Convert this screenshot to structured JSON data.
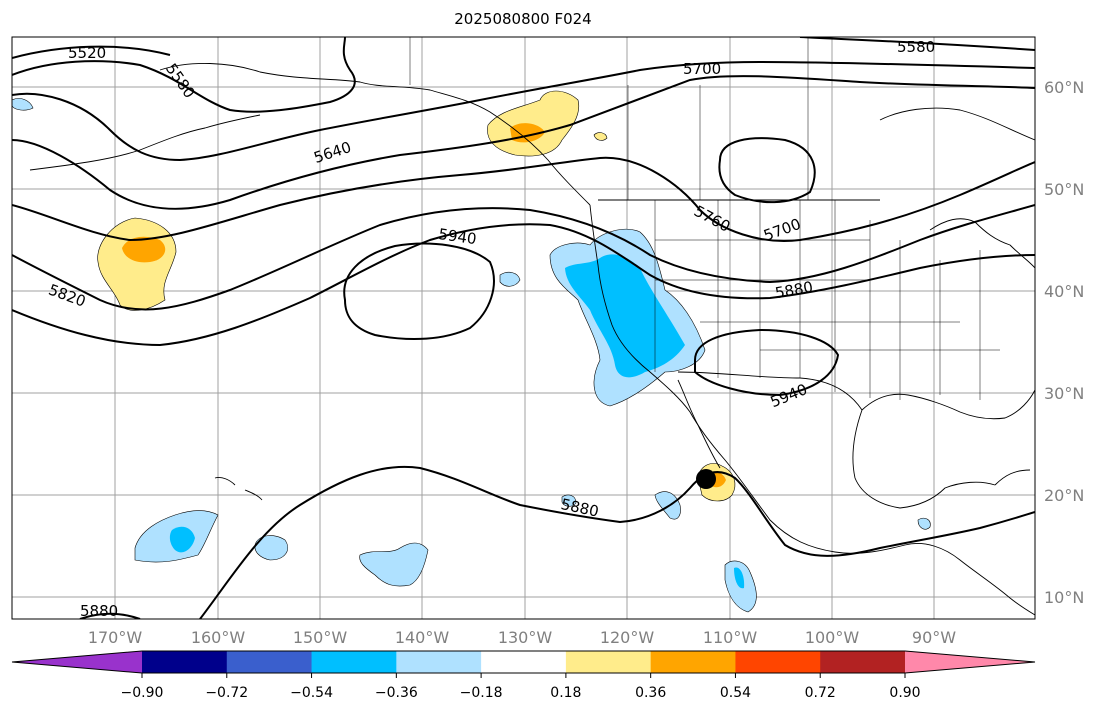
{
  "title": "2025080800 F024",
  "map": {
    "longitude_labels": [
      "170°W",
      "160°W",
      "150°W",
      "140°W",
      "130°W",
      "120°W",
      "110°W",
      "100°W",
      "90°W"
    ],
    "latitude_labels": [
      "60°N",
      "50°N",
      "40°N",
      "30°N",
      "20°N",
      "10°N"
    ],
    "contour_labels": [
      "5520",
      "5580",
      "5580",
      "5640",
      "5700",
      "5700",
      "5760",
      "5820",
      "5880",
      "5880",
      "5880",
      "5940",
      "5940"
    ],
    "contour_line_color": "#000000",
    "gridline_color": "#a0a0a0",
    "marker": {
      "type": "black-dot",
      "color": "#000000"
    }
  },
  "colorbar": {
    "colors": [
      "#9932cc",
      "#00008b",
      "#3a5fcd",
      "#00bfff",
      "#afe1ff",
      "#ffffff",
      "#ffec8b",
      "#ffa500",
      "#ff4500",
      "#b22222",
      "#ff88aa"
    ],
    "tick_labels": [
      "−0.90",
      "−0.72",
      "−0.54",
      "−0.36",
      "−0.18",
      "0.18",
      "0.36",
      "0.54",
      "0.72",
      "0.90"
    ],
    "extend": "both"
  }
}
